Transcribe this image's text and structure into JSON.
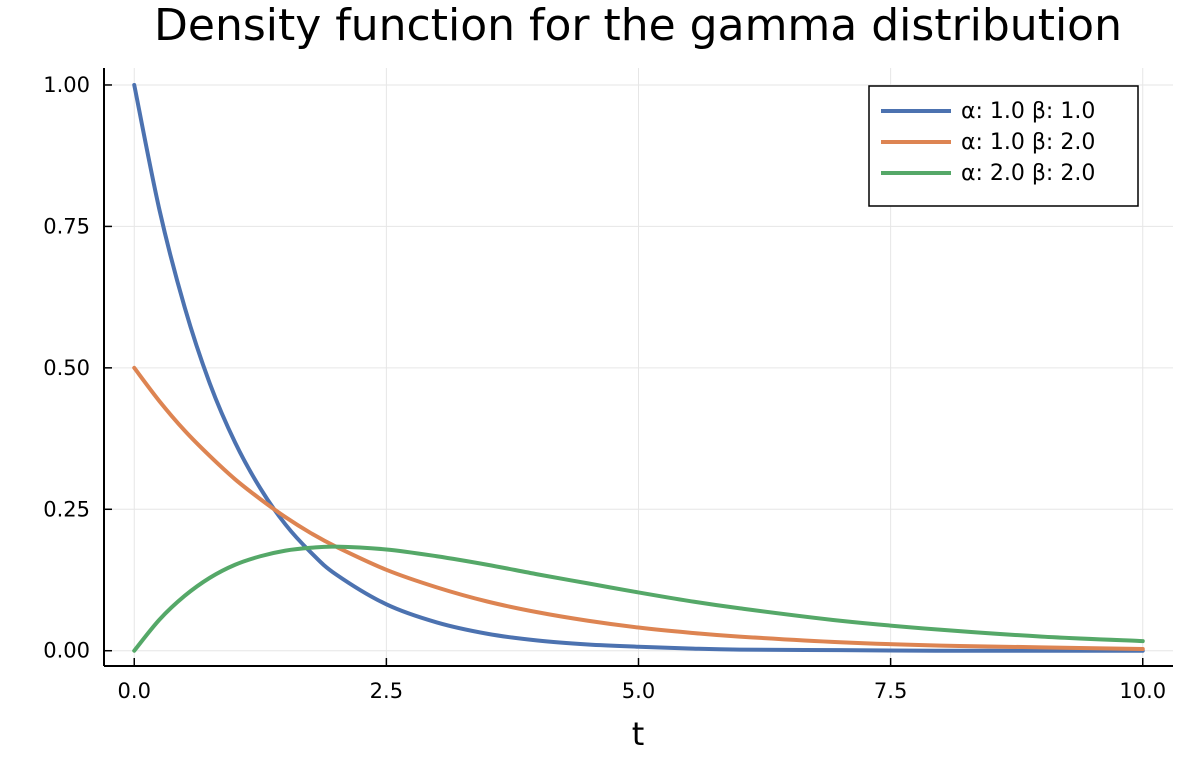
{
  "chart_data": {
    "type": "line",
    "title": "Density function for the gamma distribution",
    "xlabel": "t",
    "ylabel": "",
    "xlim": [
      -0.3,
      10.3
    ],
    "ylim": [
      -0.027,
      1.03
    ],
    "x_ticks": [
      0.0,
      2.5,
      5.0,
      7.5,
      10.0
    ],
    "x_tick_labels": [
      "0.0",
      "2.5",
      "5.0",
      "7.5",
      "10.0"
    ],
    "y_ticks": [
      0.0,
      0.25,
      0.5,
      0.75,
      1.0
    ],
    "y_tick_labels": [
      "0.00",
      "0.25",
      "0.50",
      "0.75",
      "1.00"
    ],
    "grid": true,
    "legend_position": "top-right",
    "x": [
      0.0,
      0.25,
      0.5,
      0.75,
      1.0,
      1.25,
      1.5,
      1.75,
      2.0,
      2.5,
      3.0,
      3.5,
      4.0,
      4.5,
      5.0,
      5.5,
      6.0,
      7.0,
      8.0,
      9.0,
      10.0
    ],
    "series": [
      {
        "name": "α: 1.0 β: 1.0",
        "color": "#4c72b0",
        "values": [
          1.0,
          0.779,
          0.607,
          0.472,
          0.368,
          0.287,
          0.223,
          0.174,
          0.135,
          0.082,
          0.05,
          0.03,
          0.018,
          0.011,
          0.007,
          0.004,
          0.002,
          0.001,
          0.0,
          0.0,
          0.0
        ]
      },
      {
        "name": "α: 1.0 β: 2.0",
        "color": "#dd8452",
        "values": [
          0.5,
          0.441,
          0.389,
          0.344,
          0.303,
          0.268,
          0.236,
          0.208,
          0.184,
          0.143,
          0.112,
          0.087,
          0.068,
          0.053,
          0.041,
          0.032,
          0.025,
          0.015,
          0.009,
          0.006,
          0.003
        ]
      },
      {
        "name": "α: 2.0 β: 2.0",
        "color": "#55a868",
        "values": [
          0.0,
          0.055,
          0.097,
          0.129,
          0.152,
          0.167,
          0.177,
          0.182,
          0.184,
          0.179,
          0.167,
          0.152,
          0.135,
          0.119,
          0.103,
          0.088,
          0.075,
          0.053,
          0.037,
          0.025,
          0.017
        ]
      }
    ]
  }
}
